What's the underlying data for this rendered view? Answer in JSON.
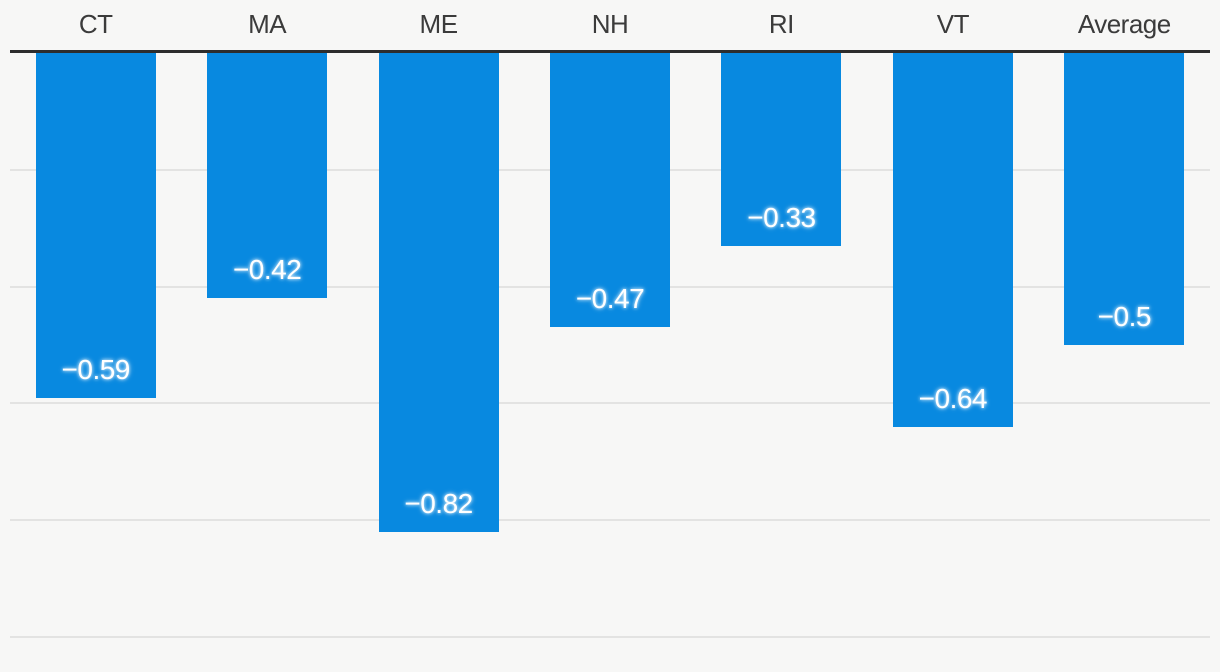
{
  "chart_data": {
    "type": "bar",
    "orientation": "vertical",
    "title": "",
    "xlabel": "",
    "ylabel": "",
    "categories": [
      "CT",
      "MA",
      "ME",
      "NH",
      "RI",
      "VT",
      "Average"
    ],
    "values": [
      -0.59,
      -0.42,
      -0.82,
      -0.47,
      -0.33,
      -0.64,
      -0.5
    ],
    "value_labels": [
      "−0.59",
      "−0.42",
      "−0.82",
      "−0.47",
      "−0.33",
      "−0.64",
      "−0.5"
    ],
    "ylim": [
      -1.06,
      0
    ],
    "grid": true,
    "grid_step": 0.2,
    "gridline_values": [
      -0.2,
      -0.4,
      -0.6,
      -0.8,
      -1.0
    ],
    "legend": null,
    "category_label_position": "top",
    "value_label_position": "inside-bottom",
    "colors": {
      "bar": "#0889e0",
      "background": "#f7f7f6",
      "gridline": "#e3e3e2",
      "zero_axis": "#2d2d2d",
      "category_text": "#3b3b3b",
      "value_text": "#ffffff"
    }
  }
}
